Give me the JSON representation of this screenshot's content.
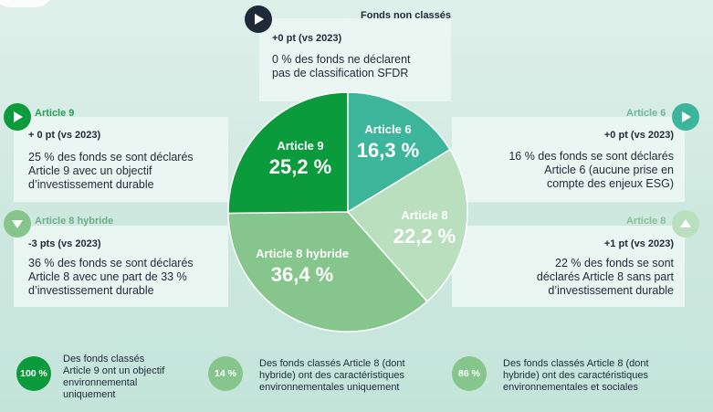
{
  "chart_data": {
    "type": "pie",
    "slices": [
      {
        "name": "Article 6",
        "value_label": "16,3 %",
        "value": 16.3,
        "color": "#3db59a"
      },
      {
        "name": "Article 8",
        "value_label": "22,2 %",
        "value": 22.2,
        "color": "#b9dfbe"
      },
      {
        "name": "Article 8 hybride",
        "value_label": "36,4 %",
        "value": 36.4,
        "color": "#86c68c"
      },
      {
        "name": "Article 9",
        "value_label": "25,2 %",
        "value": 25.2,
        "color": "#0b9a3c"
      }
    ]
  },
  "colors": {
    "dark_green": "#0b9a3c",
    "teal": "#3db59a",
    "light_green": "#86c68c",
    "pale_green": "#b9dfbe",
    "navy": "#1e2a38"
  },
  "top": {
    "heading": "Fonds non classés",
    "delta": "+0 pt (vs 2023)",
    "desc_line1": "0 % des fonds ne déclarent",
    "desc_line2": "pas de classification SFDR",
    "icon": "play-icon"
  },
  "left_top": {
    "heading": "Article 9",
    "delta": "+ 0 pt (vs 2023)",
    "desc_line1": "25 % des fonds se sont déclarés",
    "desc_line2": "Article 9 avec un objectif",
    "desc_line3": "d’investissement durable",
    "icon": "play-icon"
  },
  "left_bottom": {
    "heading": "Article 8 hybride",
    "delta": "-3 pts (vs 2023)",
    "desc_line1": "36 % des fonds se sont déclarés",
    "desc_line2": "Article 8 avec une part de 33 %",
    "desc_line3": "d’investissement durable",
    "icon": "arrow-down-icon"
  },
  "right_top": {
    "heading": "Article 6",
    "delta": "+0 pt (vs 2023)",
    "desc_line1": "16 % des fonds se sont déclarés",
    "desc_line2": "Article 6 (aucune prise en",
    "desc_line3": "compte des enjeux ESG)",
    "icon": "play-icon"
  },
  "right_bottom": {
    "heading": "Article 8",
    "delta": "+1 pt (vs 2023)",
    "desc_line1": "22 % des fonds se sont",
    "desc_line2": "déclarés Article 8 sans part",
    "desc_line3": "d’investissement durable",
    "icon": "arrow-up-icon"
  },
  "stats": [
    {
      "pct": "100 %",
      "line1": "Des fonds classés",
      "line2": "Article 9 ont un objectif",
      "line3": "environnemental",
      "line4": "uniquement"
    },
    {
      "pct": "14 %",
      "line1": "Des fonds classés Article 8 (dont",
      "line2": "hybride) ont des caractéristiques",
      "line3": "environnementales uniquement"
    },
    {
      "pct": "86 %",
      "line1": "Des fonds classés Article 8 (dont",
      "line2": "hybride) ont des caractéristiques",
      "line3": "environnementales et sociales"
    }
  ]
}
